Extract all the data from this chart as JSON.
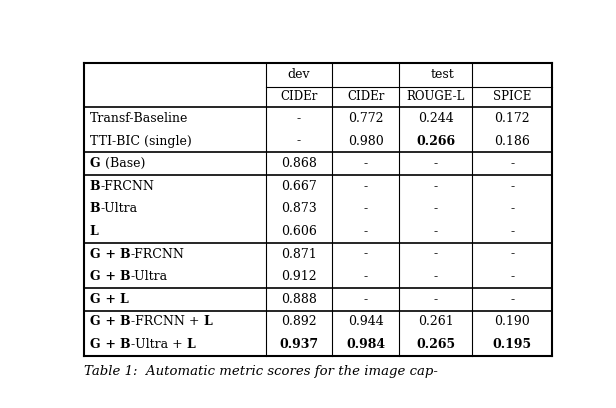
{
  "title": "Table 1:  Automatic metric scores for the image cap-",
  "rows": [
    {
      "segments": [
        {
          "t": "Transf-Baseline",
          "b": false
        }
      ],
      "values": [
        "-",
        "0.772",
        "0.244",
        "0.172"
      ],
      "bold_values": [],
      "group_sep": false
    },
    {
      "segments": [
        {
          "t": "TTI-BIC (single)",
          "b": false
        }
      ],
      "values": [
        "-",
        "0.980",
        "0.266",
        "0.186"
      ],
      "bold_values": [
        2
      ],
      "group_sep": false
    },
    {
      "segments": [
        {
          "t": "G",
          "b": true
        },
        {
          "t": " (Base)",
          "b": false
        }
      ],
      "values": [
        "0.868",
        "-",
        "-",
        "-"
      ],
      "bold_values": [],
      "group_sep": true
    },
    {
      "segments": [
        {
          "t": "B",
          "b": true
        },
        {
          "t": "-FRCNN",
          "b": false
        }
      ],
      "values": [
        "0.667",
        "-",
        "-",
        "-"
      ],
      "bold_values": [],
      "group_sep": true
    },
    {
      "segments": [
        {
          "t": "B",
          "b": true
        },
        {
          "t": "-Ultra",
          "b": false
        }
      ],
      "values": [
        "0.873",
        "-",
        "-",
        "-"
      ],
      "bold_values": [],
      "group_sep": false
    },
    {
      "segments": [
        {
          "t": "L",
          "b": true
        }
      ],
      "values": [
        "0.606",
        "-",
        "-",
        "-"
      ],
      "bold_values": [],
      "group_sep": false
    },
    {
      "segments": [
        {
          "t": "G",
          "b": true
        },
        {
          "t": " + ",
          "b": true
        },
        {
          "t": "B",
          "b": true
        },
        {
          "t": "-FRCNN",
          "b": false
        }
      ],
      "values": [
        "0.871",
        "-",
        "-",
        "-"
      ],
      "bold_values": [],
      "group_sep": true
    },
    {
      "segments": [
        {
          "t": "G",
          "b": true
        },
        {
          "t": " + ",
          "b": true
        },
        {
          "t": "B",
          "b": true
        },
        {
          "t": "-Ultra",
          "b": false
        }
      ],
      "values": [
        "0.912",
        "-",
        "-",
        "-"
      ],
      "bold_values": [],
      "group_sep": false
    },
    {
      "segments": [
        {
          "t": "G",
          "b": true
        },
        {
          "t": " + ",
          "b": true
        },
        {
          "t": "L",
          "b": true
        }
      ],
      "values": [
        "0.888",
        "-",
        "-",
        "-"
      ],
      "bold_values": [],
      "group_sep": true
    },
    {
      "segments": [
        {
          "t": "G",
          "b": true
        },
        {
          "t": " + ",
          "b": true
        },
        {
          "t": "B",
          "b": true
        },
        {
          "t": "-FRCNN + ",
          "b": false
        },
        {
          "t": "L",
          "b": true
        }
      ],
      "values": [
        "0.892",
        "0.944",
        "0.261",
        "0.190"
      ],
      "bold_values": [],
      "group_sep": true
    },
    {
      "segments": [
        {
          "t": "G",
          "b": true
        },
        {
          "t": " + ",
          "b": true
        },
        {
          "t": "B",
          "b": true
        },
        {
          "t": "-Ultra + ",
          "b": false
        },
        {
          "t": "L",
          "b": true
        }
      ],
      "values": [
        "0.937",
        "0.984",
        "0.265",
        "0.195"
      ],
      "bold_values": [
        0,
        1,
        2,
        3
      ],
      "group_sep": false
    }
  ],
  "col_headers2": [
    "CIDEr",
    "CIDEr",
    "ROUGE-L",
    "SPICE"
  ],
  "bg": "#ffffff",
  "fs": 9.0,
  "hfs": 9.0
}
